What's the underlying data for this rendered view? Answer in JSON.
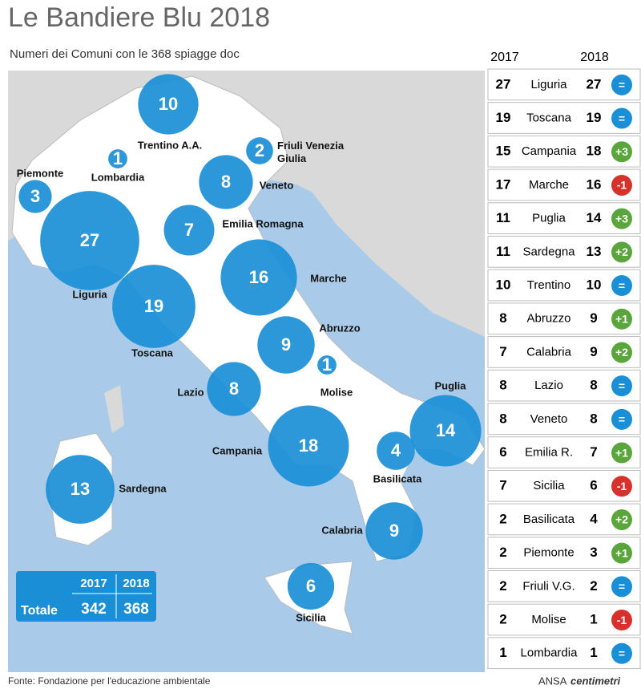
{
  "header": {
    "title": "Le Bandiere Blu 2018",
    "subtitle": "Numeri dei Comuni con le 368 spiagge doc"
  },
  "map": {
    "regions": [
      {
        "label": "Trentino A.A.",
        "value": 10
      },
      {
        "label": "Lombardia",
        "value": 1
      },
      {
        "label": [
          "Friuli Venezia",
          "Giulia"
        ],
        "value": 2
      },
      {
        "label": "Piemonte",
        "value": 3
      },
      {
        "label": "Veneto",
        "value": 8
      },
      {
        "label": "Liguria",
        "value": 27
      },
      {
        "label": "Emilia Romagna",
        "value": 7
      },
      {
        "label": "Marche",
        "value": 16
      },
      {
        "label": "Toscana",
        "value": 19
      },
      {
        "label": "Abruzzo",
        "value": 9
      },
      {
        "label": "Molise",
        "value": 1
      },
      {
        "label": "Lazio",
        "value": 8
      },
      {
        "label": "Puglia",
        "value": 14
      },
      {
        "label": "Campania",
        "value": 18
      },
      {
        "label": "Basilicata",
        "value": 4
      },
      {
        "label": "Sardegna",
        "value": 13
      },
      {
        "label": "Calabria",
        "value": 9
      },
      {
        "label": "Sicilia",
        "value": 6
      }
    ],
    "total": {
      "label": "Totale",
      "years": [
        "2017",
        "2018"
      ],
      "values": [
        342,
        368
      ]
    }
  },
  "table": {
    "columns": [
      "2017",
      "2018"
    ],
    "rows": [
      {
        "y2017": 27,
        "region": "Liguria",
        "y2018": 27,
        "change": "="
      },
      {
        "y2017": 19,
        "region": "Toscana",
        "y2018": 19,
        "change": "="
      },
      {
        "y2017": 15,
        "region": "Campania",
        "y2018": 18,
        "change": "+3"
      },
      {
        "y2017": 17,
        "region": "Marche",
        "y2018": 16,
        "change": "-1"
      },
      {
        "y2017": 11,
        "region": "Puglia",
        "y2018": 14,
        "change": "+3"
      },
      {
        "y2017": 11,
        "region": "Sardegna",
        "y2018": 13,
        "change": "+2"
      },
      {
        "y2017": 10,
        "region": "Trentino",
        "y2018": 10,
        "change": "="
      },
      {
        "y2017": 8,
        "region": "Abruzzo",
        "y2018": 9,
        "change": "+1"
      },
      {
        "y2017": 7,
        "region": "Calabria",
        "y2018": 9,
        "change": "+2"
      },
      {
        "y2017": 8,
        "region": "Lazio",
        "y2018": 8,
        "change": "="
      },
      {
        "y2017": 8,
        "region": "Veneto",
        "y2018": 8,
        "change": "="
      },
      {
        "y2017": 6,
        "region": "Emilia R.",
        "y2018": 7,
        "change": "+1"
      },
      {
        "y2017": 7,
        "region": "Sicilia",
        "y2018": 6,
        "change": "-1"
      },
      {
        "y2017": 2,
        "region": "Basilicata",
        "y2018": 4,
        "change": "+2"
      },
      {
        "y2017": 2,
        "region": "Piemonte",
        "y2018": 3,
        "change": "+1"
      },
      {
        "y2017": 2,
        "region": "Friuli V.G.",
        "y2018": 2,
        "change": "="
      },
      {
        "y2017": 2,
        "region": "Molise",
        "y2018": 1,
        "change": "-1"
      },
      {
        "y2017": 1,
        "region": "Lombardia",
        "y2018": 1,
        "change": "="
      }
    ]
  },
  "footer": {
    "source": "Fonte: Fondazione per l'educazione ambientale",
    "brand": "ANSA",
    "brand2": "centimetri"
  }
}
